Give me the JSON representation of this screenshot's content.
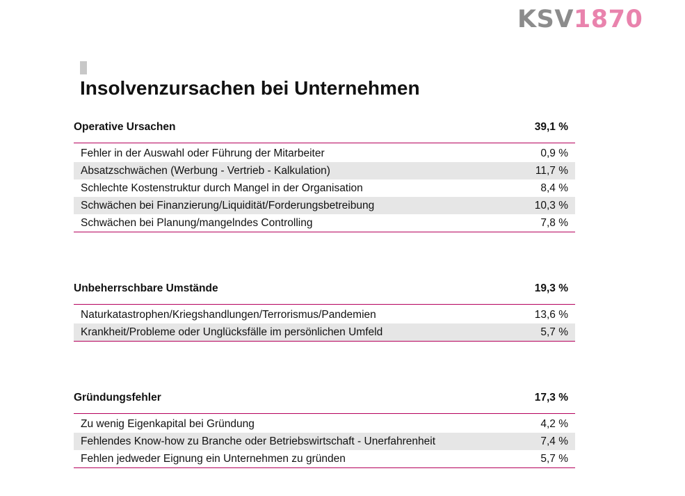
{
  "logo": {
    "ksv": "KSV",
    "year": "1870"
  },
  "title": "Insolvenzursachen bei Unternehmen",
  "sections": [
    {
      "label": "Operative Ursachen",
      "value": "39,1 %",
      "rows": [
        {
          "label": "Fehler in der Auswahl oder Führung der Mitarbeiter",
          "value": "0,9 %"
        },
        {
          "label": "Absatzschwächen (Werbung - Vertrieb - Kalkulation)",
          "value": "11,7 %"
        },
        {
          "label": "Schlechte Kostenstruktur durch Mangel in der Organisation",
          "value": "8,4 %"
        },
        {
          "label": "Schwächen bei Finanzierung/Liquidität/Forderungsbetreibung",
          "value": "10,3 %"
        },
        {
          "label": "Schwächen bei Planung/mangelndes Controlling",
          "value": "7,8 %"
        }
      ]
    },
    {
      "label": "Unbeherrschbare Umstände",
      "value": "19,3 %",
      "rows": [
        {
          "label": "Naturkatastrophen/Kriegshandlungen/Terrorismus/Pandemien",
          "value": "13,6 %"
        },
        {
          "label": "Krankheit/Probleme oder Unglücksfälle im persönlichen Umfeld",
          "value": "5,7 %"
        }
      ]
    },
    {
      "label": "Gründungsfehler",
      "value": "17,3 %",
      "rows": [
        {
          "label": "Zu wenig Eigenkapital bei Gründung",
          "value": "4,2 %"
        },
        {
          "label": "Fehlendes Know-how zu Branche oder Betriebswirtschaft - Unerfahrenheit",
          "value": "7,4 %"
        },
        {
          "label": "Fehlen jedweder Eignung ein Unternehmen zu gründen",
          "value": "5,7 %"
        }
      ]
    }
  ]
}
